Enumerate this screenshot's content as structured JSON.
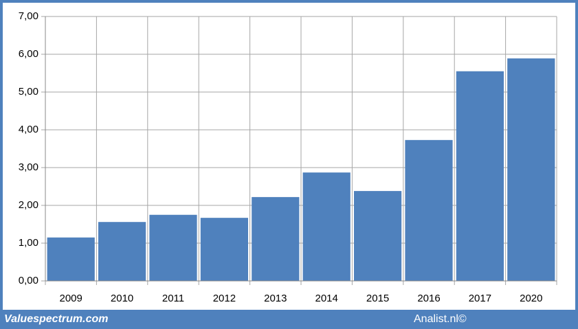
{
  "chart_data": {
    "type": "bar",
    "categories": [
      "2009",
      "2010",
      "2011",
      "2012",
      "2013",
      "2014",
      "2015",
      "2016",
      "2017",
      "2020"
    ],
    "values": [
      1.15,
      1.56,
      1.75,
      1.67,
      2.22,
      2.87,
      2.38,
      3.73,
      5.55,
      5.89
    ],
    "color": "#4f81bd",
    "ylim": [
      0,
      7
    ],
    "yticks": [
      {
        "value": 0,
        "label": "0,00"
      },
      {
        "value": 1,
        "label": "1,00"
      },
      {
        "value": 2,
        "label": "2,00"
      },
      {
        "value": 3,
        "label": "3,00"
      },
      {
        "value": 4,
        "label": "4,00"
      },
      {
        "value": 5,
        "label": "5,00"
      },
      {
        "value": 6,
        "label": "6,00"
      },
      {
        "value": 7,
        "label": "7,00"
      }
    ],
    "grid": true
  },
  "footer": {
    "left": "Valuespectrum.com",
    "right": "Analist.nl©"
  }
}
